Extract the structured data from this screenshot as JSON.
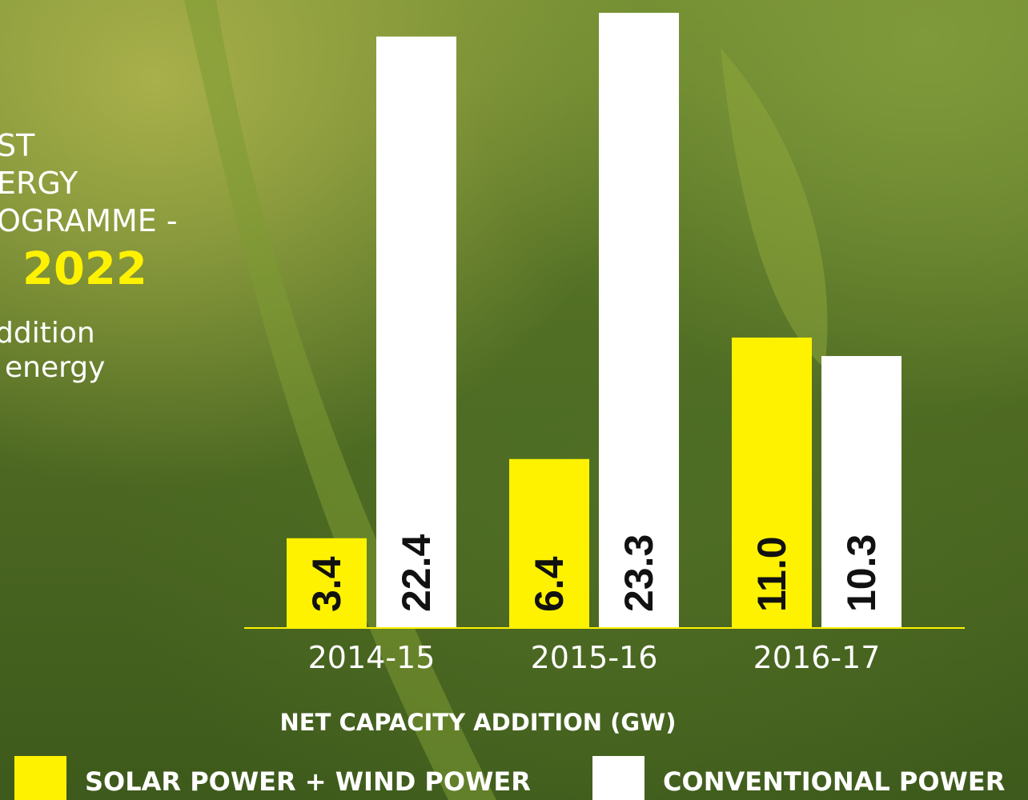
{
  "chart_data": {
    "type": "bar",
    "intro_lines": [
      "ST",
      "ERGY",
      "OGRAMME -"
    ],
    "intro_highlight": "2022",
    "intro_sub_lines": [
      "ddition",
      "energy"
    ],
    "categories": [
      "2014-15",
      "2015-16",
      "2016-17"
    ],
    "series": [
      {
        "name": "SOLAR POWER + WIND POWER",
        "color": "#fff200",
        "values": [
          3.4,
          6.4,
          11.0
        ],
        "value_labels": [
          "3.4",
          "6.4",
          "11.0"
        ]
      },
      {
        "name": "CONVENTIONAL POWER",
        "color": "#ffffff",
        "values": [
          22.4,
          23.3,
          10.3
        ]
      }
    ],
    "x_label": "NET CAPACITY ADDITION (GW)"
  }
}
